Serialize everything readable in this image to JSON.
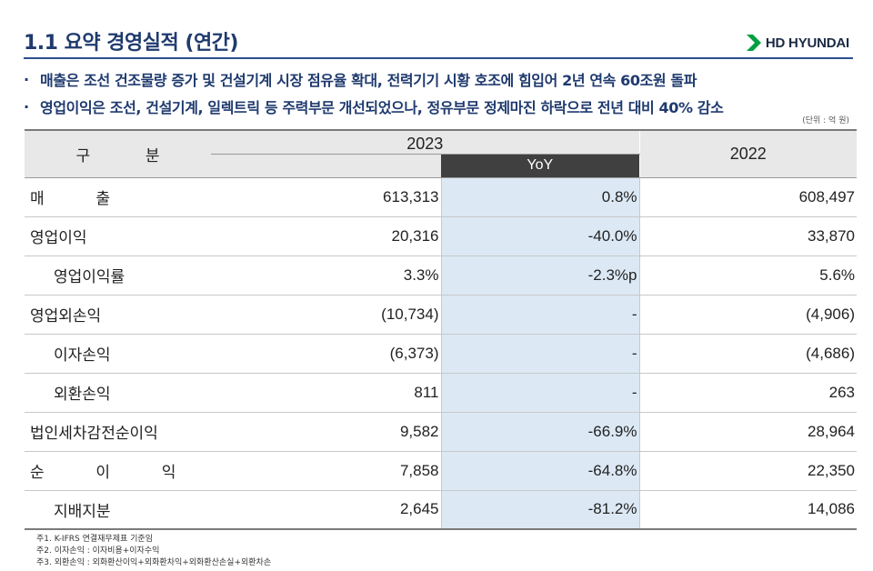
{
  "title": "1.1 요약 경영실적 (연간)",
  "logo": {
    "text": "HD HYUNDAI",
    "icon": "chevron-logo-icon",
    "color": "#00a040"
  },
  "bullets": [
    "매출은 조선 건조물량 증가 및 건설기계 시장 점유율 확대, 전력기기 시황 호조에 힘입어 2년 연속 60조원 돌파",
    "영업이익은 조선, 건설기계, 일렉트릭 등 주력부문 개선되었으나, 정유부문 정제마진 하락으로 전년 대비 40% 감소"
  ],
  "unit": "(단위 : 억 원)",
  "table": {
    "headers": {
      "gubun": "구 분",
      "y2023": "2023",
      "yoy": "YoY",
      "y2022": "2022"
    },
    "rows": [
      {
        "label": "매 출",
        "v2023": "613,313",
        "yoy": "0.8%",
        "v2022": "608,497"
      },
      {
        "label": "영업이익",
        "v2023": "20,316",
        "yoy": "-40.0%",
        "v2022": "33,870"
      },
      {
        "label": "영업이익률",
        "v2023": "3.3%",
        "yoy": "-2.3%p",
        "v2022": "5.6%"
      },
      {
        "label": "영업외손익",
        "v2023": "(10,734)",
        "yoy": "-",
        "v2022": "(4,906)"
      },
      {
        "label": "이자손익",
        "v2023": "(6,373)",
        "yoy": "-",
        "v2022": "(4,686)"
      },
      {
        "label": "외환손익",
        "v2023": "811",
        "yoy": "-",
        "v2022": "263"
      },
      {
        "label": "법인세차감전순이익",
        "v2023": "9,582",
        "yoy": "-66.9%",
        "v2022": "28,964"
      },
      {
        "label": "순 이 익",
        "v2023": "7,858",
        "yoy": "-64.8%",
        "v2022": "22,350"
      },
      {
        "label": "지배지분",
        "v2023": "2,645",
        "yoy": "-81.2%",
        "v2022": "14,086"
      }
    ]
  },
  "notes": [
    "주1. K-IFRS 연결재무제표 기준임",
    "주2. 이자손익 : 이자비용+이자수익",
    "주3. 외환손익 : 외화환산이익+외화환차익+외화환산손실+외환차손"
  ],
  "colors": {
    "title": "#1f3a6e",
    "negative": "#d0121b",
    "yoy_header": "#404040",
    "yoy_column": "#dce9f5",
    "header_bg": "#e8e8e8"
  }
}
